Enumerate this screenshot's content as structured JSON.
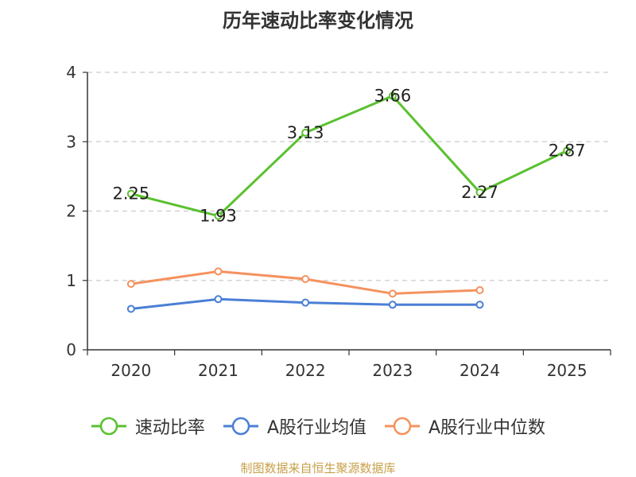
{
  "title": "历年速动比率变化情况",
  "source": "制图数据来自恒生聚源数据库",
  "chart_data": {
    "type": "line",
    "title": "历年速动比率变化情况",
    "categories": [
      "2020",
      "2021",
      "2022",
      "2023",
      "2024",
      "2025"
    ],
    "ylim": [
      0,
      4
    ],
    "yticks": [
      0,
      1,
      2,
      3,
      4
    ],
    "grid": true,
    "legend_position": "bottom",
    "series": [
      {
        "name": "速动比率",
        "color": "#5ac12f",
        "values": [
          2.25,
          1.93,
          3.13,
          3.66,
          2.27,
          2.87
        ],
        "labels": [
          "2.25",
          "1.93",
          "3.13",
          "3.66",
          "2.27",
          "2.87"
        ]
      },
      {
        "name": "A股行业均值",
        "color": "#4a7fd6",
        "values": [
          0.59,
          0.73,
          0.68,
          0.65,
          0.65,
          null
        ]
      },
      {
        "name": "A股行业中位数",
        "color": "#f5925e",
        "values": [
          0.95,
          1.13,
          1.02,
          0.81,
          0.86,
          null
        ]
      }
    ]
  }
}
